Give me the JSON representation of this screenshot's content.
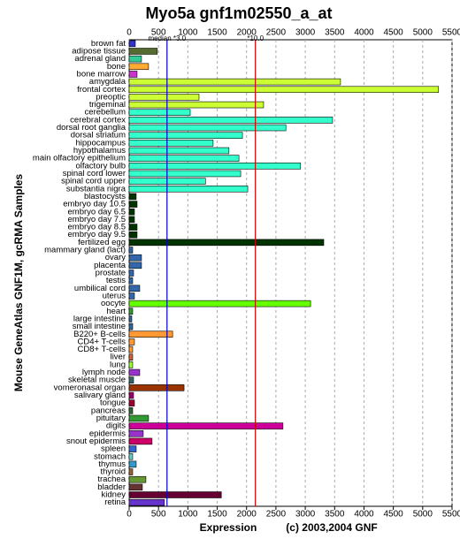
{
  "chart_data": {
    "type": "hbar",
    "title": "Myo5a gnf1m02550_a_at",
    "x_label": "Expression",
    "y_label": "Mouse GeneAtlas GNF1M, gcRMA Samples",
    "credit": "(c) 2003,2004 GNF",
    "categories": [
      "brown fat",
      "adipose tissue",
      "adrenal gland",
      "bone",
      "bone marrow",
      "amygdala",
      "frontal cortex",
      "preoptic",
      "trigeminal",
      "cerebellum",
      "cerebral cortex",
      "dorsal root ganglia",
      "dorsal striatum",
      "hippocampus",
      "hypothalamus",
      "main olfactory epithelium",
      "olfactory bulb",
      "spinal cord lower",
      "spinal cord upper",
      "substantia nigra",
      "blastocysts",
      "embryo day 10.5",
      "embryo day 6.5",
      "embryo day 7.5",
      "embryo day 8.5",
      "embryo day 9.5",
      "fertilized egg",
      "mammary gland (lact)",
      "ovary",
      "placenta",
      "prostate",
      "testis",
      "umbilical cord",
      "uterus",
      "oocyte",
      "heart",
      "large intestine",
      "small intestine",
      "B220+ B-cells",
      "CD4+ T-cells",
      "CD8+ T-cells",
      "liver",
      "lung",
      "lymph node",
      "skeletal muscle",
      "vomeronasal organ",
      "salivary gland",
      "tongue",
      "pancreas",
      "pituitary",
      "digits",
      "epidermis",
      "snout epidermis",
      "spleen",
      "stomach",
      "thymus",
      "thyroid",
      "trachea",
      "bladder",
      "kidney",
      "retina"
    ],
    "values": [
      105,
      480,
      210,
      330,
      135,
      3600,
      5270,
      1190,
      2290,
      1040,
      3465,
      2670,
      1930,
      1430,
      1700,
      1870,
      2920,
      1900,
      1300,
      2020,
      120,
      135,
      90,
      90,
      135,
      135,
      3315,
      60,
      210,
      210,
      75,
      60,
      180,
      90,
      3090,
      60,
      45,
      60,
      740,
      90,
      60,
      60,
      60,
      180,
      75,
      935,
      75,
      90,
      60,
      330,
      2620,
      240,
      390,
      120,
      60,
      120,
      60,
      285,
      225,
      1570,
      600
    ],
    "colors": [
      "#3333cc",
      "#556b2f",
      "#33cc99",
      "#ffaa33",
      "#cc33cc",
      "#ccff33",
      "#ccff33",
      "#ccff33",
      "#ccff33",
      "#33ffcc",
      "#33ffcc",
      "#33ffcc",
      "#33ffcc",
      "#33ffcc",
      "#33ffcc",
      "#33ffcc",
      "#33ffcc",
      "#33ffcc",
      "#33ffcc",
      "#33ffcc",
      "#003300",
      "#003300",
      "#003300",
      "#003300",
      "#003300",
      "#003300",
      "#003300",
      "#3366aa",
      "#3366aa",
      "#3366aa",
      "#3366aa",
      "#3366aa",
      "#3366aa",
      "#3366aa",
      "#66ff00",
      "#339933",
      "#336699",
      "#336699",
      "#ff9933",
      "#ff9933",
      "#ff9933",
      "#cc6633",
      "#99ff33",
      "#9933cc",
      "#336666",
      "#993300",
      "#990066",
      "#990033",
      "#336633",
      "#339933",
      "#cc0099",
      "#9933cc",
      "#cc0066",
      "#3366cc",
      "#66cccc",
      "#3399cc",
      "#996633",
      "#669933",
      "#663333",
      "#660033",
      "#6633cc"
    ],
    "xlim": [
      0,
      5500
    ],
    "xticks": [
      0,
      500,
      1000,
      1500,
      2000,
      2500,
      3000,
      3500,
      4000,
      4500,
      5000,
      5500
    ],
    "grid": true,
    "reference_lines": [
      {
        "value": 645,
        "label": "median *3.0",
        "color": "#0000cc"
      },
      {
        "value": 2150,
        "label": "*10.0",
        "color": "#cc0000"
      }
    ]
  }
}
